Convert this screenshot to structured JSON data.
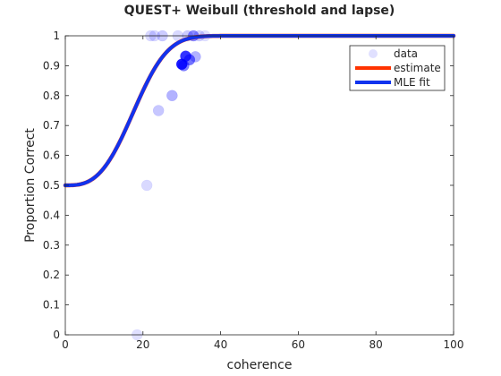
{
  "chart_data": {
    "type": "scatter",
    "title": "QUEST+ Weibull (threshold and lapse)",
    "xlabel": "coherence",
    "ylabel": "Proportion Correct",
    "xlim": [
      0,
      100
    ],
    "ylim": [
      0,
      1
    ],
    "x_ticks": [
      "0",
      "20",
      "40",
      "60",
      "80",
      "100"
    ],
    "y_ticks": [
      "0",
      "0.1",
      "0.2",
      "0.3",
      "0.4",
      "0.5",
      "0.6",
      "0.7",
      "0.8",
      "0.9",
      "1"
    ],
    "grid": false,
    "legend_position": "top-right",
    "legend": [
      {
        "label": "data",
        "kind": "marker",
        "color": "#0000ff"
      },
      {
        "label": "estimate",
        "kind": "line",
        "color": "#ff3300"
      },
      {
        "label": "MLE fit",
        "kind": "line",
        "color": "#1133ee"
      }
    ],
    "series": [
      {
        "name": "data",
        "kind": "scatter",
        "color": "#0000ff",
        "points": [
          {
            "x": 18.5,
            "y": 0.0,
            "alpha": 0.12
          },
          {
            "x": 21.0,
            "y": 0.5,
            "alpha": 0.15
          },
          {
            "x": 24.0,
            "y": 0.75,
            "alpha": 0.22
          },
          {
            "x": 27.5,
            "y": 0.8,
            "alpha": 0.3
          },
          {
            "x": 22.0,
            "y": 1.0,
            "alpha": 0.15
          },
          {
            "x": 23.0,
            "y": 1.0,
            "alpha": 0.15
          },
          {
            "x": 25.0,
            "y": 1.0,
            "alpha": 0.2
          },
          {
            "x": 29.0,
            "y": 1.0,
            "alpha": 0.15
          },
          {
            "x": 31.5,
            "y": 1.0,
            "alpha": 0.2
          },
          {
            "x": 33.0,
            "y": 1.0,
            "alpha": 0.45
          },
          {
            "x": 34.5,
            "y": 1.0,
            "alpha": 0.18
          },
          {
            "x": 36.0,
            "y": 1.0,
            "alpha": 0.12
          },
          {
            "x": 30.0,
            "y": 0.905,
            "alpha": 0.9
          },
          {
            "x": 30.5,
            "y": 0.9,
            "alpha": 0.5
          },
          {
            "x": 31.0,
            "y": 0.932,
            "alpha": 0.8
          },
          {
            "x": 32.0,
            "y": 0.92,
            "alpha": 0.55
          },
          {
            "x": 33.5,
            "y": 0.93,
            "alpha": 0.3
          }
        ]
      },
      {
        "name": "estimate",
        "kind": "line",
        "color": "#ff3300",
        "model": "weibull",
        "threshold": 20,
        "slope": 3,
        "guess": 0.5,
        "lapse": 0.0
      },
      {
        "name": "MLE fit",
        "kind": "line",
        "color": "#1133ee",
        "model": "weibull",
        "threshold": 20,
        "slope": 3,
        "guess": 0.5,
        "lapse": 0.0
      }
    ]
  }
}
